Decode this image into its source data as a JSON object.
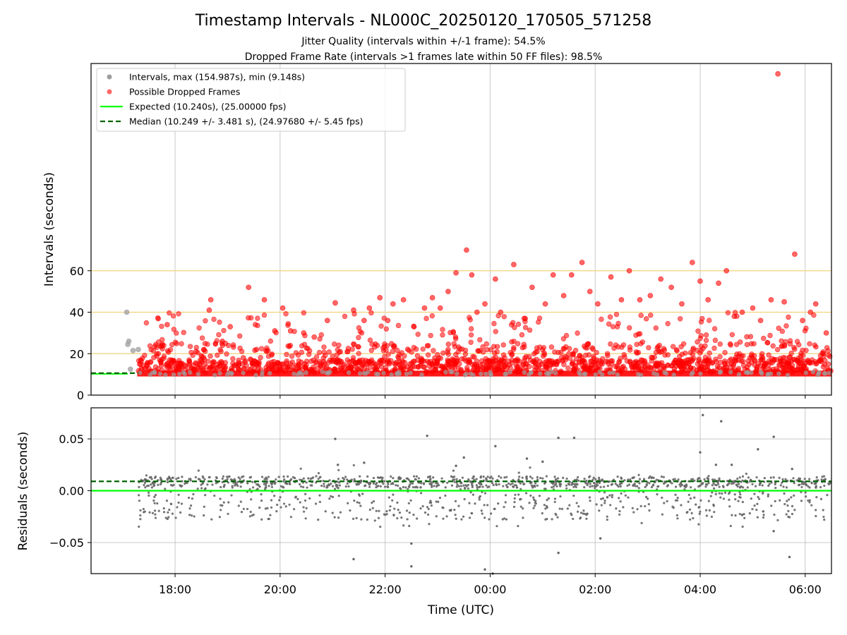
{
  "chart_data": [
    {
      "type": "scatter",
      "title": "Timestamp Intervals - NL000C_20250120_170505_571258",
      "subtitle_lines": [
        "Jitter Quality (intervals within +/-1 frame): 54.5%",
        "Dropped Frame Rate (intervals >1 frames late within 50 FF files): 98.5%"
      ],
      "xlabel": "",
      "ylabel": "Intervals (seconds)",
      "x_range_hours": [
        16.4,
        30.5
      ],
      "ylim": [
        0,
        160
      ],
      "yticks": [
        0,
        20,
        40,
        60
      ],
      "xticks_hours": [
        18,
        20,
        22,
        24,
        26,
        28,
        30
      ],
      "grid": true,
      "reference_lines_y": [
        20,
        40,
        60
      ],
      "expected_interval_s": 10.24,
      "median_interval_s": 10.249,
      "legend_position": "top-left",
      "legend": [
        "Intervals, max (154.987s), min (9.148s)",
        "Possible Dropped Frames",
        "Expected (10.240s), (25.00000 fps)",
        "Median (10.249 +/- 3.481 s), (24.97680 +/- 5.45 fps)"
      ],
      "series": [
        {
          "name": "Intervals, max (154.987s), min (9.148s)",
          "color": "#9e9e9e",
          "points": [
            [
              17.08,
              40.0
            ],
            [
              17.1,
              24.5
            ],
            [
              17.12,
              26.0
            ],
            [
              17.15,
              12.5
            ],
            [
              17.2,
              21.5
            ],
            [
              17.3,
              22.0
            ]
          ]
        },
        {
          "name": "Possible Dropped Frames",
          "color": "#ff0000",
          "points": [
            [
              17.85,
              34
            ],
            [
              18.4,
              21
            ],
            [
              18.55,
              22
            ],
            [
              18.65,
              41
            ],
            [
              18.68,
              46
            ],
            [
              18.9,
              26
            ],
            [
              19.05,
              33
            ],
            [
              19.3,
              18
            ],
            [
              19.4,
              52
            ],
            [
              19.55,
              22
            ],
            [
              19.7,
              46
            ],
            [
              19.9,
              31
            ],
            [
              20.05,
              42
            ],
            [
              20.2,
              31
            ],
            [
              20.45,
              30
            ],
            [
              20.65,
              28
            ],
            [
              20.9,
              36
            ],
            [
              21.05,
              44.5
            ],
            [
              21.4,
              41
            ],
            [
              21.6,
              36
            ],
            [
              21.7,
              42
            ],
            [
              21.9,
              47
            ],
            [
              22.05,
              36
            ],
            [
              22.15,
              44
            ],
            [
              22.35,
              46
            ],
            [
              22.55,
              33
            ],
            [
              22.75,
              42
            ],
            [
              22.9,
              47
            ],
            [
              23.05,
              42
            ],
            [
              23.2,
              50
            ],
            [
              23.35,
              59
            ],
            [
              23.55,
              70
            ],
            [
              23.65,
              58
            ],
            [
              23.75,
              40
            ],
            [
              23.9,
              44
            ],
            [
              24.1,
              56
            ],
            [
              24.2,
              40
            ],
            [
              24.45,
              63
            ],
            [
              24.65,
              37
            ],
            [
              24.8,
              52
            ],
            [
              25.05,
              44
            ],
            [
              25.2,
              58
            ],
            [
              25.4,
              48
            ],
            [
              25.55,
              58
            ],
            [
              25.75,
              64
            ],
            [
              25.9,
              50
            ],
            [
              26.05,
              44
            ],
            [
              26.3,
              57
            ],
            [
              26.5,
              46
            ],
            [
              26.65,
              60
            ],
            [
              26.85,
              46
            ],
            [
              27.05,
              48
            ],
            [
              27.25,
              56
            ],
            [
              27.45,
              52
            ],
            [
              27.65,
              44
            ],
            [
              27.85,
              64
            ],
            [
              28.0,
              55
            ],
            [
              28.15,
              46
            ],
            [
              28.35,
              54
            ],
            [
              28.5,
              60
            ],
            [
              28.65,
              38
            ],
            [
              28.8,
              40
            ],
            [
              29.0,
              42
            ],
            [
              29.15,
              36
            ],
            [
              29.35,
              46
            ],
            [
              29.48,
              155
            ],
            [
              29.6,
              45
            ],
            [
              29.8,
              68
            ],
            [
              29.95,
              36
            ],
            [
              30.1,
              40
            ],
            [
              30.2,
              44
            ],
            [
              30.4,
              30
            ]
          ]
        }
      ]
    },
    {
      "type": "scatter",
      "title": "",
      "xlabel": "Time (UTC)",
      "ylabel": "Residuals (seconds)",
      "ylim": [
        -0.08,
        0.08
      ],
      "yticks": [
        -0.05,
        0.0,
        0.05
      ],
      "ytick_labels": [
        "−0.05",
        "0.00",
        "0.05"
      ],
      "xtick_labels": [
        "18:00",
        "20:00",
        "22:00",
        "00:00",
        "02:00",
        "04:00",
        "06:00"
      ],
      "grid": true,
      "expected_residual_s": 0.0,
      "median_residual_s": 0.009,
      "series": [
        {
          "name": "",
          "color": "#666666",
          "outlier_points": [
            [
              21.05,
              0.05
            ],
            [
              21.1,
              0.025
            ],
            [
              21.4,
              -0.066
            ],
            [
              21.6,
              0.027
            ],
            [
              22.5,
              -0.051
            ],
            [
              22.5,
              -0.073
            ],
            [
              22.8,
              0.053
            ],
            [
              23.35,
              0.024
            ],
            [
              23.5,
              0.032
            ],
            [
              23.9,
              -0.076
            ],
            [
              24.05,
              -0.08
            ],
            [
              24.1,
              0.043
            ],
            [
              24.7,
              0.031
            ],
            [
              25.0,
              0.028
            ],
            [
              25.3,
              -0.06
            ],
            [
              25.3,
              0.051
            ],
            [
              25.6,
              0.051
            ],
            [
              26.1,
              -0.046
            ],
            [
              28.0,
              0.037
            ],
            [
              28.05,
              0.073
            ],
            [
              28.3,
              0.025
            ],
            [
              28.4,
              0.067
            ],
            [
              28.6,
              0.025
            ],
            [
              29.1,
              0.04
            ],
            [
              29.2,
              -0.02
            ],
            [
              29.4,
              0.052
            ],
            [
              29.4,
              -0.039
            ],
            [
              29.7,
              -0.064
            ],
            [
              29.75,
              0.021
            ]
          ]
        }
      ]
    }
  ],
  "colors": {
    "interval_points": "#9e9e9e",
    "dropped_points": "#ff0000",
    "expected_line": "#00ff00",
    "median_line": "#006400",
    "reference_lines": "#f2d27a",
    "residual_points": "#666666",
    "grid": "#b0b0b0"
  }
}
